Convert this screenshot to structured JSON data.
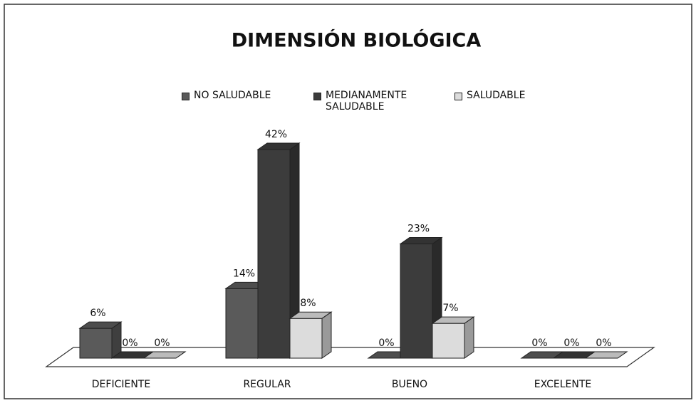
{
  "chart_data": {
    "type": "bar3d",
    "title": "DIMENSIÓN BIOLÓGICA",
    "categories": [
      "DEFICIENTE",
      "REGULAR",
      "BUENO",
      "EXCELENTE"
    ],
    "series": [
      {
        "name": "NO SALUDABLE",
        "color": "#5a5a5a",
        "values": [
          6,
          14,
          0,
          0
        ],
        "value_labels": [
          "6%",
          "14%",
          "0%",
          "0%"
        ]
      },
      {
        "name": "MEDIANAMENTE SALUDABLE",
        "color": "#3c3c3c",
        "values": [
          0,
          42,
          23,
          0
        ],
        "value_labels": [
          "0%",
          "42%",
          "23%",
          "0%"
        ]
      },
      {
        "name": "SALUDABLE",
        "color": "#dcdcdc",
        "values": [
          0,
          8,
          7,
          0
        ],
        "value_labels": [
          "0%",
          "8%",
          "7%",
          "0%"
        ]
      }
    ],
    "legend": "top"
  }
}
